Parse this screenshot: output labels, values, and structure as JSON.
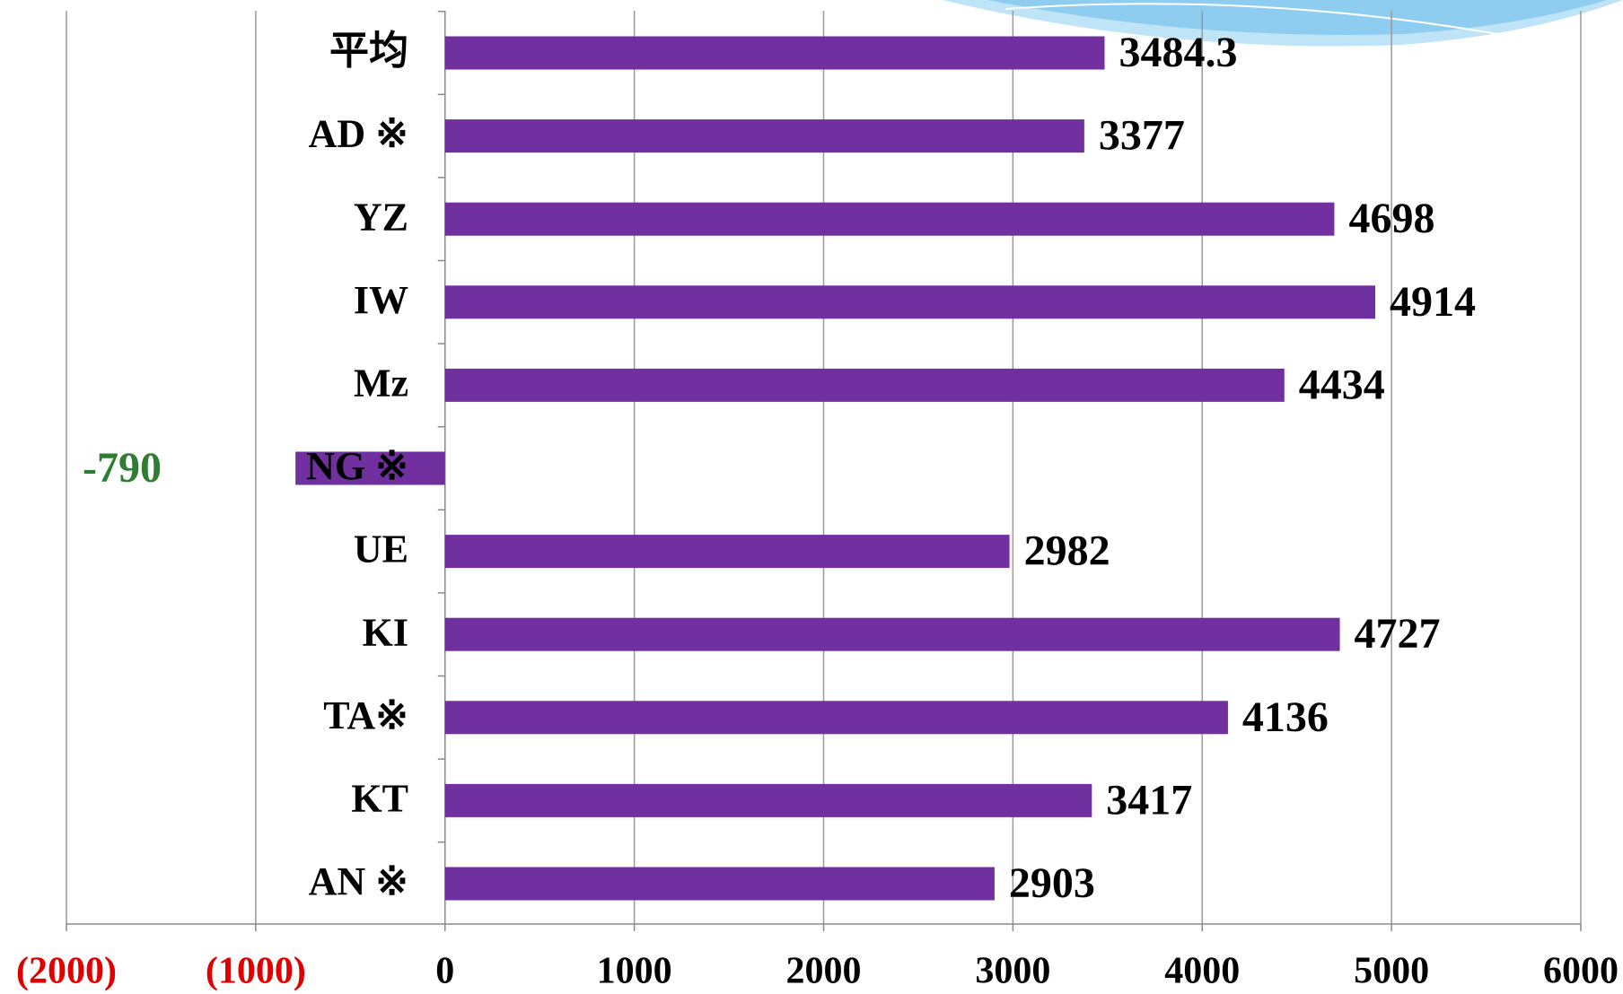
{
  "chart_data": {
    "type": "barh",
    "categories": [
      "平均",
      "AD ※",
      "YZ",
      "IW",
      "Mz",
      "NG ※",
      "UE",
      "KI",
      "TA※",
      "KT",
      "AN ※"
    ],
    "values": [
      3484.3,
      3377,
      4698,
      4914,
      4434,
      -790,
      2982,
      4727,
      4136,
      3417,
      2903
    ],
    "color": "#7030a0",
    "xlim": [
      -2000,
      6000
    ],
    "xticks": [
      {
        "value": -2000,
        "label": "(2000)"
      },
      {
        "value": -1000,
        "label": "(1000)"
      },
      0,
      1000,
      2000,
      3000,
      4000,
      5000,
      6000
    ],
    "negative_tick_color": "#e00000",
    "negative_label_color": "#2e7d32",
    "grid": true
  }
}
